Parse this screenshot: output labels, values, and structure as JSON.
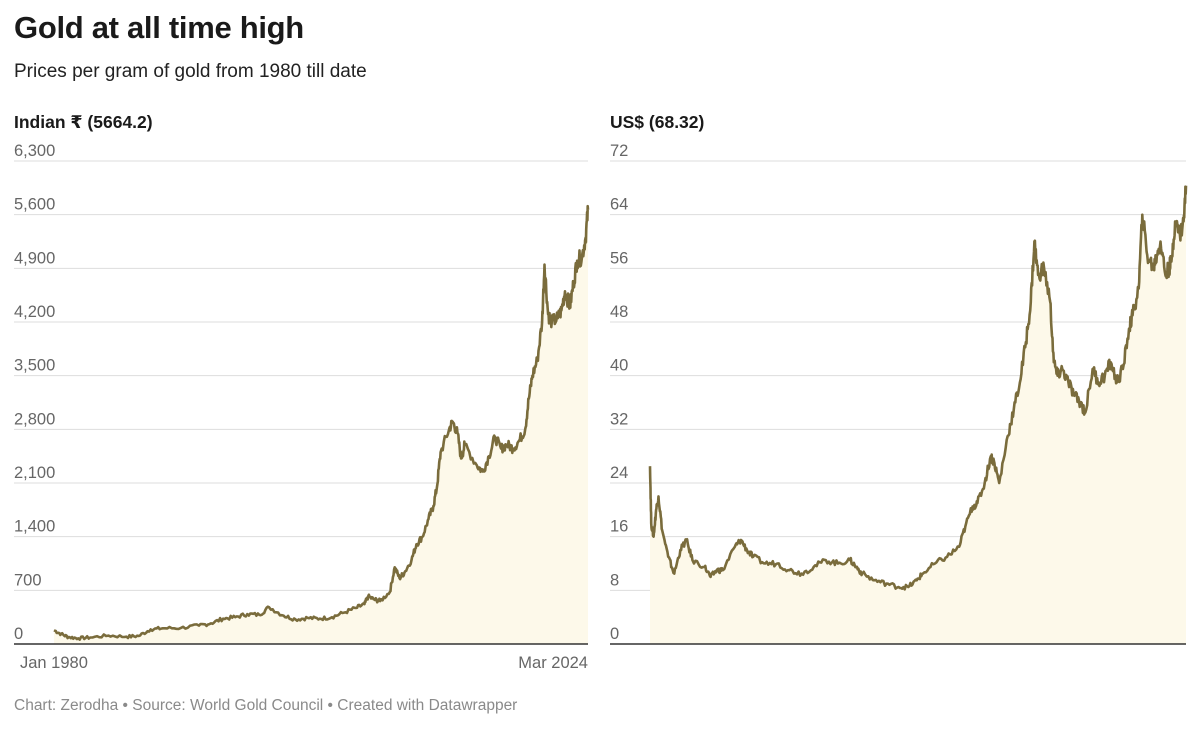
{
  "header": {
    "title": "Gold at all time high",
    "subtitle": "Prices per gram of gold from 1980 till date"
  },
  "footer": {
    "credit": "Chart: Zerodha • Source: World Gold Council • Created with Datawrapper"
  },
  "colors": {
    "line": "#7a6c3c",
    "area": "#fdf9ea",
    "grid": "#dddddd",
    "axis": "#333333",
    "tick": "#666666"
  },
  "chart_data": [
    {
      "type": "area",
      "title": "Indian ₹ (5664.2)",
      "ylim": [
        0,
        6300
      ],
      "yticks": [
        0,
        700,
        1400,
        2100,
        2800,
        3500,
        4200,
        4900,
        5600,
        6300
      ],
      "ytick_labels": [
        "0",
        "700",
        "1,400",
        "2,100",
        "2,800",
        "3,500",
        "4,200",
        "4,900",
        "5,600",
        "6,300"
      ],
      "xlim": [
        1980,
        2024.2
      ],
      "xtick_labels": [
        {
          "x": 1980,
          "label": "Jan 1980"
        },
        {
          "x": 2024.2,
          "label": "Mar 2024"
        }
      ],
      "x": [
        1980.0,
        1980.6,
        1981.2,
        1982.0,
        1983.0,
        1984.5,
        1986.0,
        1987.0,
        1988.0,
        1989.0,
        1990.5,
        1992.0,
        1993.0,
        1994.0,
        1995.0,
        1996.0,
        1997.0,
        1997.8,
        1999.0,
        2000.0,
        2001.0,
        2002.0,
        2003.0,
        2004.0,
        2005.0,
        2005.7,
        2006.0,
        2006.5,
        2007.0,
        2007.8,
        2008.2,
        2008.6,
        2009.0,
        2009.6,
        2010.0,
        2010.5,
        2011.0,
        2011.4,
        2011.7,
        2012.0,
        2012.7,
        2013.0,
        2013.4,
        2013.7,
        2014.0,
        2015.0,
        2015.5,
        2016.0,
        2016.5,
        2017.0,
        2017.5,
        2018.0,
        2018.5,
        2019.0,
        2019.3,
        2019.6,
        2020.0,
        2020.4,
        2020.6,
        2020.9,
        2021.2,
        2021.7,
        2022.0,
        2022.3,
        2022.7,
        2023.0,
        2023.3,
        2023.7,
        2024.0,
        2024.2
      ],
      "values": [
        180,
        130,
        90,
        75,
        85,
        110,
        95,
        105,
        190,
        205,
        210,
        240,
        270,
        330,
        350,
        390,
        380,
        480,
        370,
        320,
        340,
        330,
        350,
        410,
        470,
        520,
        620,
        580,
        560,
        680,
        1000,
        860,
        930,
        1100,
        1300,
        1400,
        1630,
        1800,
        2050,
        2500,
        2800,
        2900,
        2750,
        2420,
        2600,
        2330,
        2250,
        2450,
        2700,
        2550,
        2600,
        2550,
        2650,
        2800,
        3200,
        3500,
        3700,
        4200,
        4950,
        4300,
        4200,
        4250,
        4350,
        4600,
        4400,
        4700,
        5000,
        5050,
        5300,
        5664.2
      ],
      "series_name": "Indian ₹"
    },
    {
      "type": "area",
      "title": "US$ (68.32)",
      "ylim": [
        0,
        72
      ],
      "yticks": [
        0,
        8,
        16,
        24,
        32,
        40,
        48,
        56,
        64,
        72
      ],
      "ytick_labels": [
        "0",
        "8",
        "16",
        "24",
        "32",
        "40",
        "48",
        "56",
        "64",
        "72"
      ],
      "xlim": [
        1980,
        2024.2
      ],
      "xtick_labels": [],
      "x": [
        1980.0,
        1980.1,
        1980.3,
        1980.5,
        1980.7,
        1981.0,
        1981.5,
        1982.0,
        1982.5,
        1983.0,
        1983.5,
        1984.5,
        1985.0,
        1985.5,
        1986.0,
        1987.0,
        1987.5,
        1988.0,
        1988.5,
        1989.5,
        1990.5,
        1991.5,
        1992.5,
        1993.5,
        1994.5,
        1995.5,
        1996.5,
        1997.0,
        1997.5,
        1998.5,
        1999.5,
        2000.5,
        2001.3,
        2002.0,
        2002.5,
        2003.5,
        2004.5,
        2005.5,
        2006.0,
        2006.6,
        2007.0,
        2007.6,
        2008.1,
        2008.4,
        2008.8,
        2009.5,
        2010.0,
        2010.5,
        2011.0,
        2011.4,
        2011.7,
        2012.0,
        2012.5,
        2013.0,
        2013.3,
        2013.6,
        2014.0,
        2014.5,
        2015.0,
        2015.5,
        2015.9,
        2016.5,
        2017.0,
        2017.5,
        2018.0,
        2018.5,
        2019.0,
        2019.5,
        2019.8,
        2020.3,
        2020.6,
        2021.0,
        2021.5,
        2021.8,
        2022.1,
        2022.5,
        2022.8,
        2023.0,
        2023.3,
        2023.7,
        2024.0,
        2024.2
      ],
      "values": [
        26.5,
        18,
        16,
        20,
        22,
        17,
        13,
        10.5,
        14,
        15.5,
        12.5,
        11.5,
        10,
        11,
        11,
        14.5,
        15.5,
        14,
        13,
        12,
        12,
        11,
        10.5,
        11.5,
        12.5,
        12,
        12.5,
        11.5,
        10.5,
        9.5,
        9,
        8.5,
        8.5,
        9.5,
        10.5,
        12,
        13,
        14.5,
        17.5,
        20.5,
        21,
        24,
        28,
        27,
        24,
        31,
        35,
        39,
        45,
        51,
        60,
        55,
        56,
        51,
        42,
        40,
        41,
        39,
        37,
        36,
        34.5,
        41,
        39,
        40,
        42,
        39,
        41,
        47,
        49,
        53,
        64,
        58,
        56,
        58,
        60,
        55,
        56,
        57,
        63,
        61,
        63,
        68.32
      ],
      "series_name": "US$"
    }
  ]
}
